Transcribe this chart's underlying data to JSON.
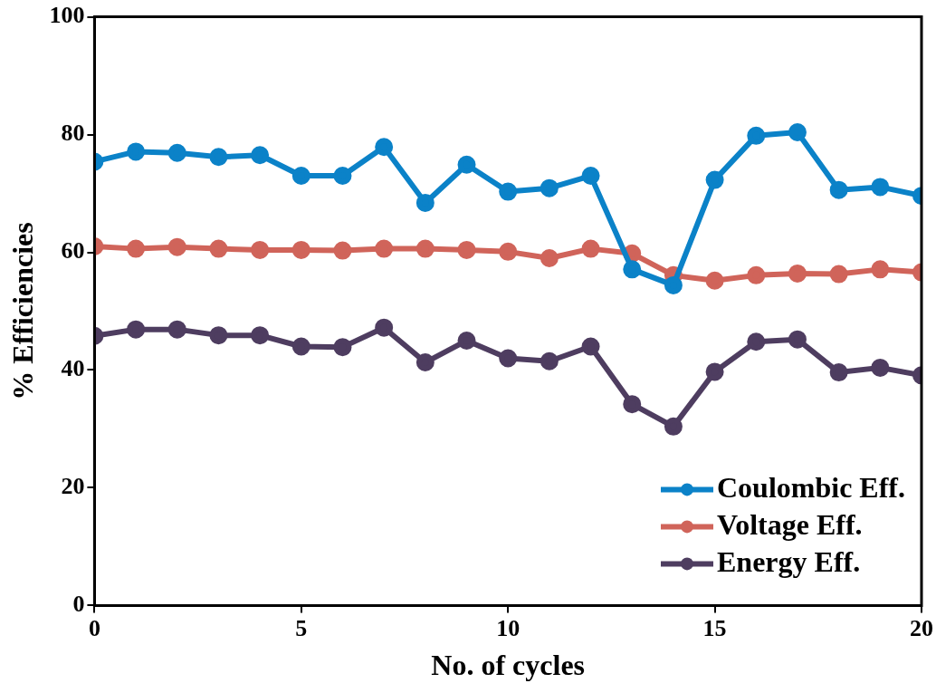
{
  "chart_data": {
    "type": "line",
    "xlabel": "No. of cycles",
    "ylabel": "% Efficiencies",
    "x": [
      0,
      1,
      2,
      3,
      4,
      5,
      6,
      7,
      8,
      9,
      10,
      11,
      12,
      13,
      14,
      15,
      16,
      17,
      18,
      19,
      20
    ],
    "series": [
      {
        "name": "Coulombic Eff.",
        "color": "#0b82c8",
        "values": [
          75.4,
          77.1,
          76.9,
          76.2,
          76.5,
          73.0,
          73.0,
          77.9,
          68.4,
          74.9,
          70.3,
          70.9,
          73.0,
          57.1,
          54.4,
          72.3,
          79.8,
          80.4,
          70.6,
          71.1,
          69.6
        ]
      },
      {
        "name": "Voltage Eff.",
        "color": "#d0645a",
        "values": [
          61.0,
          60.6,
          60.9,
          60.6,
          60.4,
          60.4,
          60.3,
          60.6,
          60.6,
          60.4,
          60.1,
          59.0,
          60.6,
          59.8,
          56.1,
          55.2,
          56.1,
          56.4,
          56.3,
          57.1,
          56.6
        ]
      },
      {
        "name": "Energy Eff.",
        "color": "#4e3d60",
        "values": [
          45.8,
          46.9,
          46.9,
          45.9,
          45.9,
          44.0,
          43.9,
          47.2,
          41.3,
          45.0,
          42.0,
          41.5,
          44.0,
          34.2,
          30.4,
          39.7,
          44.8,
          45.2,
          39.6,
          40.4,
          39.1
        ]
      }
    ],
    "xlim": [
      0,
      20
    ],
    "xticks": [
      0,
      5,
      10,
      15,
      20
    ],
    "ylim": [
      0,
      100
    ],
    "yticks": [
      0,
      20,
      40,
      60,
      80,
      100
    ],
    "grid": false,
    "legend": "bottom right",
    "marker": "circle",
    "line_style": "solid"
  }
}
